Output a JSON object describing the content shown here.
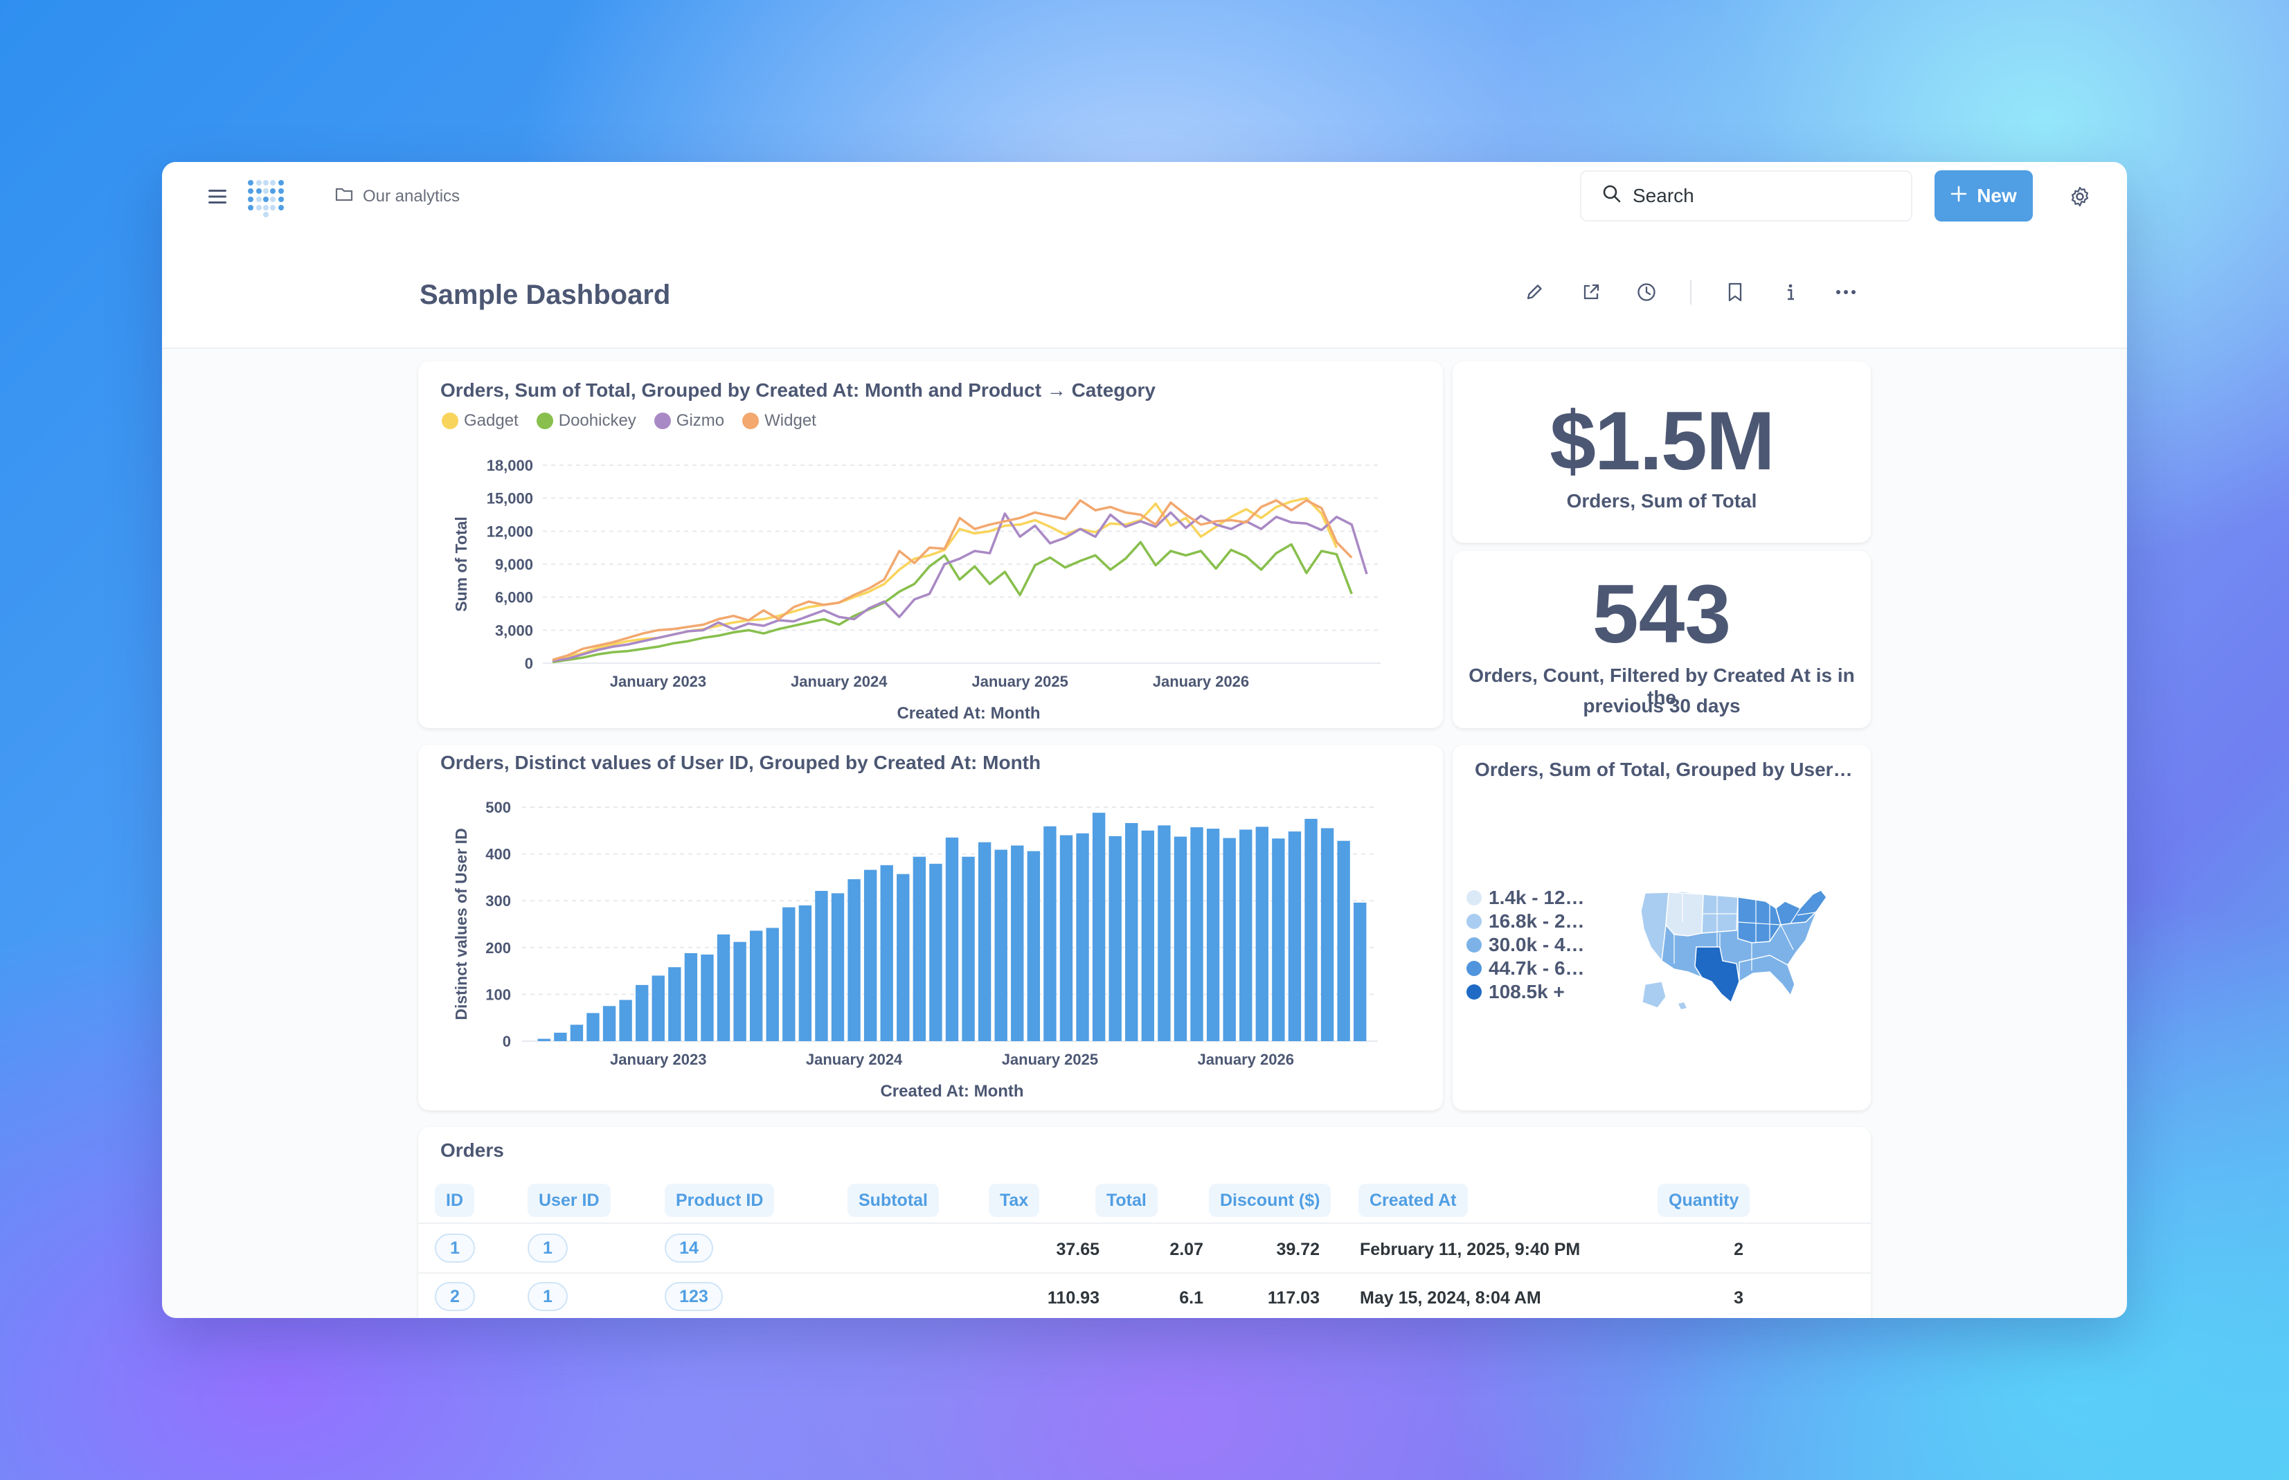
{
  "nav": {
    "breadcrumb": "Our analytics",
    "search_label": "Search",
    "new_label": "New"
  },
  "dashboard": {
    "title": "Sample Dashboard"
  },
  "line_card": {
    "title": "Orders, Sum of Total, Grouped by Created At: Month and Product → Category",
    "legend": [
      "Gadget",
      "Doohickey",
      "Gizmo",
      "Widget"
    ],
    "ylabel": "Sum of Total",
    "xlabel": "Created At: Month"
  },
  "total_card": {
    "value": "$1.5M",
    "label": "Orders, Sum of Total"
  },
  "count_card": {
    "value": "543",
    "label_line1": "Orders, Count, Filtered by Created At is in the",
    "label_line2": "previous 30 days"
  },
  "bar_card": {
    "title": "Orders, Distinct values of User ID, Grouped by Created At: Month",
    "ylabel": "Distinct values of User ID",
    "xlabel": "Created At: Month"
  },
  "map_card": {
    "title": "Orders, Sum of Total, Grouped by User…",
    "legend": [
      {
        "label": "1.4k - 12…",
        "color": "#dbe9f7"
      },
      {
        "label": "16.8k - 2…",
        "color": "#a9cdf0"
      },
      {
        "label": "30.0k - 4…",
        "color": "#7cb2e8"
      },
      {
        "label": "44.7k - 6…",
        "color": "#4f94dc"
      },
      {
        "label": "108.5k +",
        "color": "#1f6ac4"
      }
    ]
  },
  "table": {
    "title": "Orders",
    "columns": [
      "ID",
      "User ID",
      "Product ID",
      "Subtotal",
      "Tax",
      "Total",
      "Discount ($)",
      "Created At",
      "Quantity"
    ],
    "rows": [
      {
        "id": "1",
        "user_id": "1",
        "product_id": "14",
        "subtotal": "37.65",
        "tax": "2.07",
        "total": "39.72",
        "discount": "",
        "created_at": "February 11, 2025, 9:40 PM",
        "quantity": "2"
      },
      {
        "id": "2",
        "user_id": "1",
        "product_id": "123",
        "subtotal": "110.93",
        "tax": "6.1",
        "total": "117.03",
        "discount": "",
        "created_at": "May 15, 2024, 8:04 AM",
        "quantity": "3"
      }
    ]
  },
  "colors": {
    "brand": "#509ee3",
    "gadget": "#f9d45c",
    "doohickey": "#88bf4d",
    "gizmo": "#a989c5",
    "widget": "#f2a86f",
    "bar": "#509ee3"
  },
  "chart_data": [
    {
      "type": "line",
      "title": "Orders, Sum of Total, Grouped by Created At: Month and Product → Category",
      "xlabel": "Created At: Month",
      "ylabel": "Sum of Total",
      "ylim": [
        0,
        18000
      ],
      "yticks": [
        "0",
        "3,000",
        "6,000",
        "9,000",
        "12,000",
        "15,000",
        "18,000"
      ],
      "xticks": [
        "January 2023",
        "January 2024",
        "January 2025",
        "January 2026"
      ],
      "x_start": "2022-06",
      "legend_position": "top-left",
      "series": [
        {
          "name": "Gadget",
          "values": [
            100,
            600,
            900,
            1400,
            1700,
            2000,
            2200,
            2300,
            2600,
            2900,
            3100,
            3400,
            3700,
            3900,
            4000,
            4300,
            4700,
            5100,
            5300,
            5500,
            6000,
            6500,
            7200,
            8500,
            9500,
            9800,
            10300,
            12200,
            11800,
            12000,
            12500,
            12600,
            13000,
            12400,
            11700,
            12200,
            11900,
            12700,
            12600,
            13000,
            14500,
            12500,
            13200,
            11500,
            12400,
            13300,
            14000,
            13200,
            14200,
            14700,
            15000,
            13600,
            10500
          ]
        },
        {
          "name": "Doohickey",
          "values": [
            100,
            300,
            500,
            800,
            1000,
            1100,
            1300,
            1500,
            1800,
            2000,
            2300,
            2500,
            2800,
            3000,
            2700,
            3100,
            3400,
            3700,
            4000,
            3500,
            4300,
            4900,
            5500,
            6500,
            7200,
            8800,
            9800,
            7600,
            8800,
            7200,
            8300,
            6200,
            8900,
            9600,
            8700,
            9300,
            9800,
            8500,
            9500,
            11000,
            8900,
            10200,
            9800,
            10200,
            8600,
            10300,
            9700,
            8500,
            10000,
            10800,
            8200,
            10200,
            9900,
            6300
          ]
        },
        {
          "name": "Gizmo",
          "values": [
            200,
            400,
            800,
            1200,
            1500,
            1700,
            2000,
            2300,
            2600,
            2900,
            3000,
            3700,
            3100,
            3600,
            3400,
            3900,
            3800,
            4300,
            4800,
            4200,
            4000,
            5000,
            5600,
            4200,
            5800,
            6300,
            9000,
            9500,
            10200,
            10000,
            13600,
            11500,
            12500,
            10900,
            11400,
            12200,
            11500,
            13500,
            12400,
            12900,
            12400,
            13700,
            12300,
            13400,
            12600,
            12200,
            12900,
            12200,
            13300,
            12800,
            12700,
            12100,
            13300,
            12600,
            8100
          ]
        },
        {
          "name": "Widget",
          "values": [
            300,
            700,
            1300,
            1600,
            1900,
            2300,
            2700,
            3000,
            3100,
            3300,
            3500,
            4000,
            4300,
            3900,
            4800,
            4000,
            5100,
            5600,
            5300,
            5500,
            6200,
            6800,
            7600,
            10200,
            9100,
            10500,
            10400,
            13200,
            12200,
            12600,
            12900,
            13200,
            13700,
            13400,
            13100,
            14800,
            13900,
            14200,
            13700,
            13500,
            12600,
            14600,
            13500,
            12600,
            12900,
            13000,
            12800,
            14200,
            14800,
            13900,
            14800,
            14100,
            11000,
            9600
          ]
        }
      ]
    },
    {
      "type": "bar",
      "title": "Orders, Distinct values of User ID, Grouped by Created At: Month",
      "xlabel": "Created At: Month",
      "ylabel": "Distinct values of User ID",
      "ylim": [
        0,
        500
      ],
      "yticks": [
        "0",
        "100",
        "200",
        "300",
        "400",
        "500"
      ],
      "xticks": [
        "January 2023",
        "January 2024",
        "January 2025",
        "January 2026"
      ],
      "x_start": "2022-06",
      "values": [
        5,
        18,
        35,
        60,
        75,
        88,
        120,
        140,
        158,
        188,
        185,
        228,
        212,
        236,
        242,
        286,
        290,
        321,
        316,
        346,
        366,
        376,
        357,
        394,
        379,
        435,
        394,
        425,
        409,
        418,
        406,
        459,
        440,
        444,
        488,
        438,
        466,
        450,
        461,
        437,
        457,
        454,
        434,
        452,
        458,
        433,
        448,
        475,
        455,
        428,
        296
      ]
    }
  ]
}
